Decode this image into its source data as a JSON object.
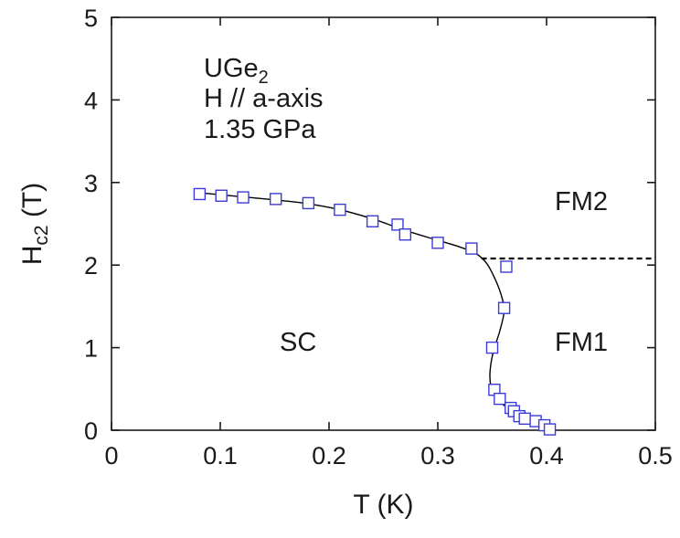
{
  "chart_data": {
    "type": "scatter",
    "title": "",
    "xlabel": "T (K)",
    "ylabel": {
      "main": "H",
      "sub": "c2",
      "unit": " (T)"
    },
    "xlim": [
      0,
      0.5
    ],
    "ylim": [
      0,
      5
    ],
    "xticks": [
      0,
      0.1,
      0.2,
      0.3,
      0.4,
      0.5
    ],
    "yticks": [
      0,
      1,
      2,
      3,
      4,
      5
    ],
    "xtick_labels": [
      "0",
      "0.1",
      "0.2",
      "0.3",
      "0.4",
      "0.5"
    ],
    "ytick_labels": [
      "0",
      "1",
      "2",
      "3",
      "4",
      "5"
    ],
    "grid": false,
    "annotations": {
      "material": {
        "base": "UGe",
        "sub": "2"
      },
      "field_direction": "H // a-axis",
      "pressure": "1.35 GPa",
      "region_sc": "SC",
      "region_fm1": "FM1",
      "region_fm2": "FM2"
    },
    "series": [
      {
        "marker": "open-square",
        "color": "#3b3bd9",
        "points": [
          [
            0.081,
            2.86
          ],
          [
            0.101,
            2.84
          ],
          [
            0.121,
            2.82
          ],
          [
            0.151,
            2.8
          ],
          [
            0.181,
            2.75
          ],
          [
            0.21,
            2.67
          ],
          [
            0.24,
            2.53
          ],
          [
            0.263,
            2.49
          ],
          [
            0.27,
            2.37
          ],
          [
            0.3,
            2.27
          ],
          [
            0.331,
            2.2
          ],
          [
            0.363,
            1.98
          ],
          [
            0.361,
            1.48
          ],
          [
            0.35,
            1.0
          ],
          [
            0.352,
            0.49
          ],
          [
            0.357,
            0.38
          ],
          [
            0.367,
            0.27
          ],
          [
            0.37,
            0.23
          ],
          [
            0.375,
            0.17
          ],
          [
            0.38,
            0.14
          ],
          [
            0.39,
            0.11
          ],
          [
            0.398,
            0.06
          ],
          [
            0.403,
            0.01
          ]
        ]
      }
    ],
    "fit_line": {
      "style": "solid",
      "color": "#000000",
      "points": [
        [
          0.081,
          2.875
        ],
        [
          0.11,
          2.84
        ],
        [
          0.15,
          2.79
        ],
        [
          0.18,
          2.745
        ],
        [
          0.21,
          2.67
        ],
        [
          0.24,
          2.56
        ],
        [
          0.27,
          2.42
        ],
        [
          0.3,
          2.3
        ],
        [
          0.32,
          2.22
        ],
        [
          0.335,
          2.14
        ],
        [
          0.345,
          2.02
        ],
        [
          0.352,
          1.85
        ],
        [
          0.358,
          1.65
        ],
        [
          0.361,
          1.45
        ],
        [
          0.357,
          1.2
        ],
        [
          0.351,
          0.95
        ],
        [
          0.348,
          0.7
        ],
        [
          0.349,
          0.52
        ],
        [
          0.353,
          0.4
        ],
        [
          0.362,
          0.29
        ],
        [
          0.372,
          0.21
        ],
        [
          0.385,
          0.13
        ],
        [
          0.397,
          0.06
        ],
        [
          0.405,
          0.0
        ]
      ]
    },
    "boundary_line": {
      "style": "dashed",
      "color": "#000000",
      "points": [
        [
          0.34,
          2.08
        ],
        [
          0.5,
          2.08
        ]
      ]
    }
  }
}
